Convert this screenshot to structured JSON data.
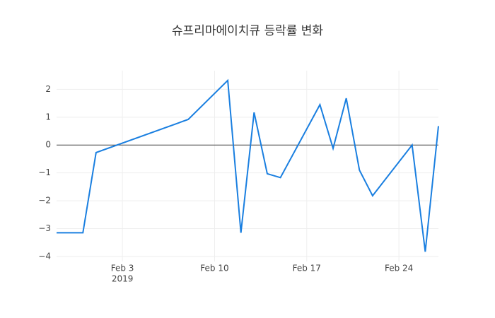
{
  "chart_data": {
    "type": "line",
    "title": "슈프리마에이치큐 등락률 변화",
    "x": [
      "2019-01-29",
      "2019-01-31",
      "2019-02-01",
      "2019-02-08",
      "2019-02-11",
      "2019-02-12",
      "2019-02-13",
      "2019-02-14",
      "2019-02-15",
      "2019-02-18",
      "2019-02-19",
      "2019-02-20",
      "2019-02-21",
      "2019-02-22",
      "2019-02-25",
      "2019-02-26",
      "2019-02-27"
    ],
    "series": [
      {
        "color": "#1a7fe0",
        "values": [
          -3.15,
          -3.15,
          -0.27,
          0.92,
          2.32,
          -3.15,
          1.17,
          -1.03,
          -1.17,
          1.45,
          -0.12,
          1.68,
          -0.9,
          -1.82,
          0.0,
          -3.83,
          0.68
        ]
      }
    ],
    "xlim": [
      "2019-01-29",
      "2019-02-27"
    ],
    "xticks": [
      {
        "value": "2019-02-03",
        "label": "Feb 3"
      },
      {
        "value": "2019-02-10",
        "label": "Feb 10"
      },
      {
        "value": "2019-02-17",
        "label": "Feb 17"
      },
      {
        "value": "2019-02-24",
        "label": "Feb 24"
      }
    ],
    "x_year_label": "2019",
    "ylim": [
      -4.18,
      2.67
    ],
    "yticks": [
      {
        "value": -4,
        "label": "−4"
      },
      {
        "value": -3,
        "label": "−3"
      },
      {
        "value": -2,
        "label": "−2"
      },
      {
        "value": -1,
        "label": "−1"
      },
      0,
      1,
      2
    ],
    "grid": true,
    "zeroline": true
  }
}
